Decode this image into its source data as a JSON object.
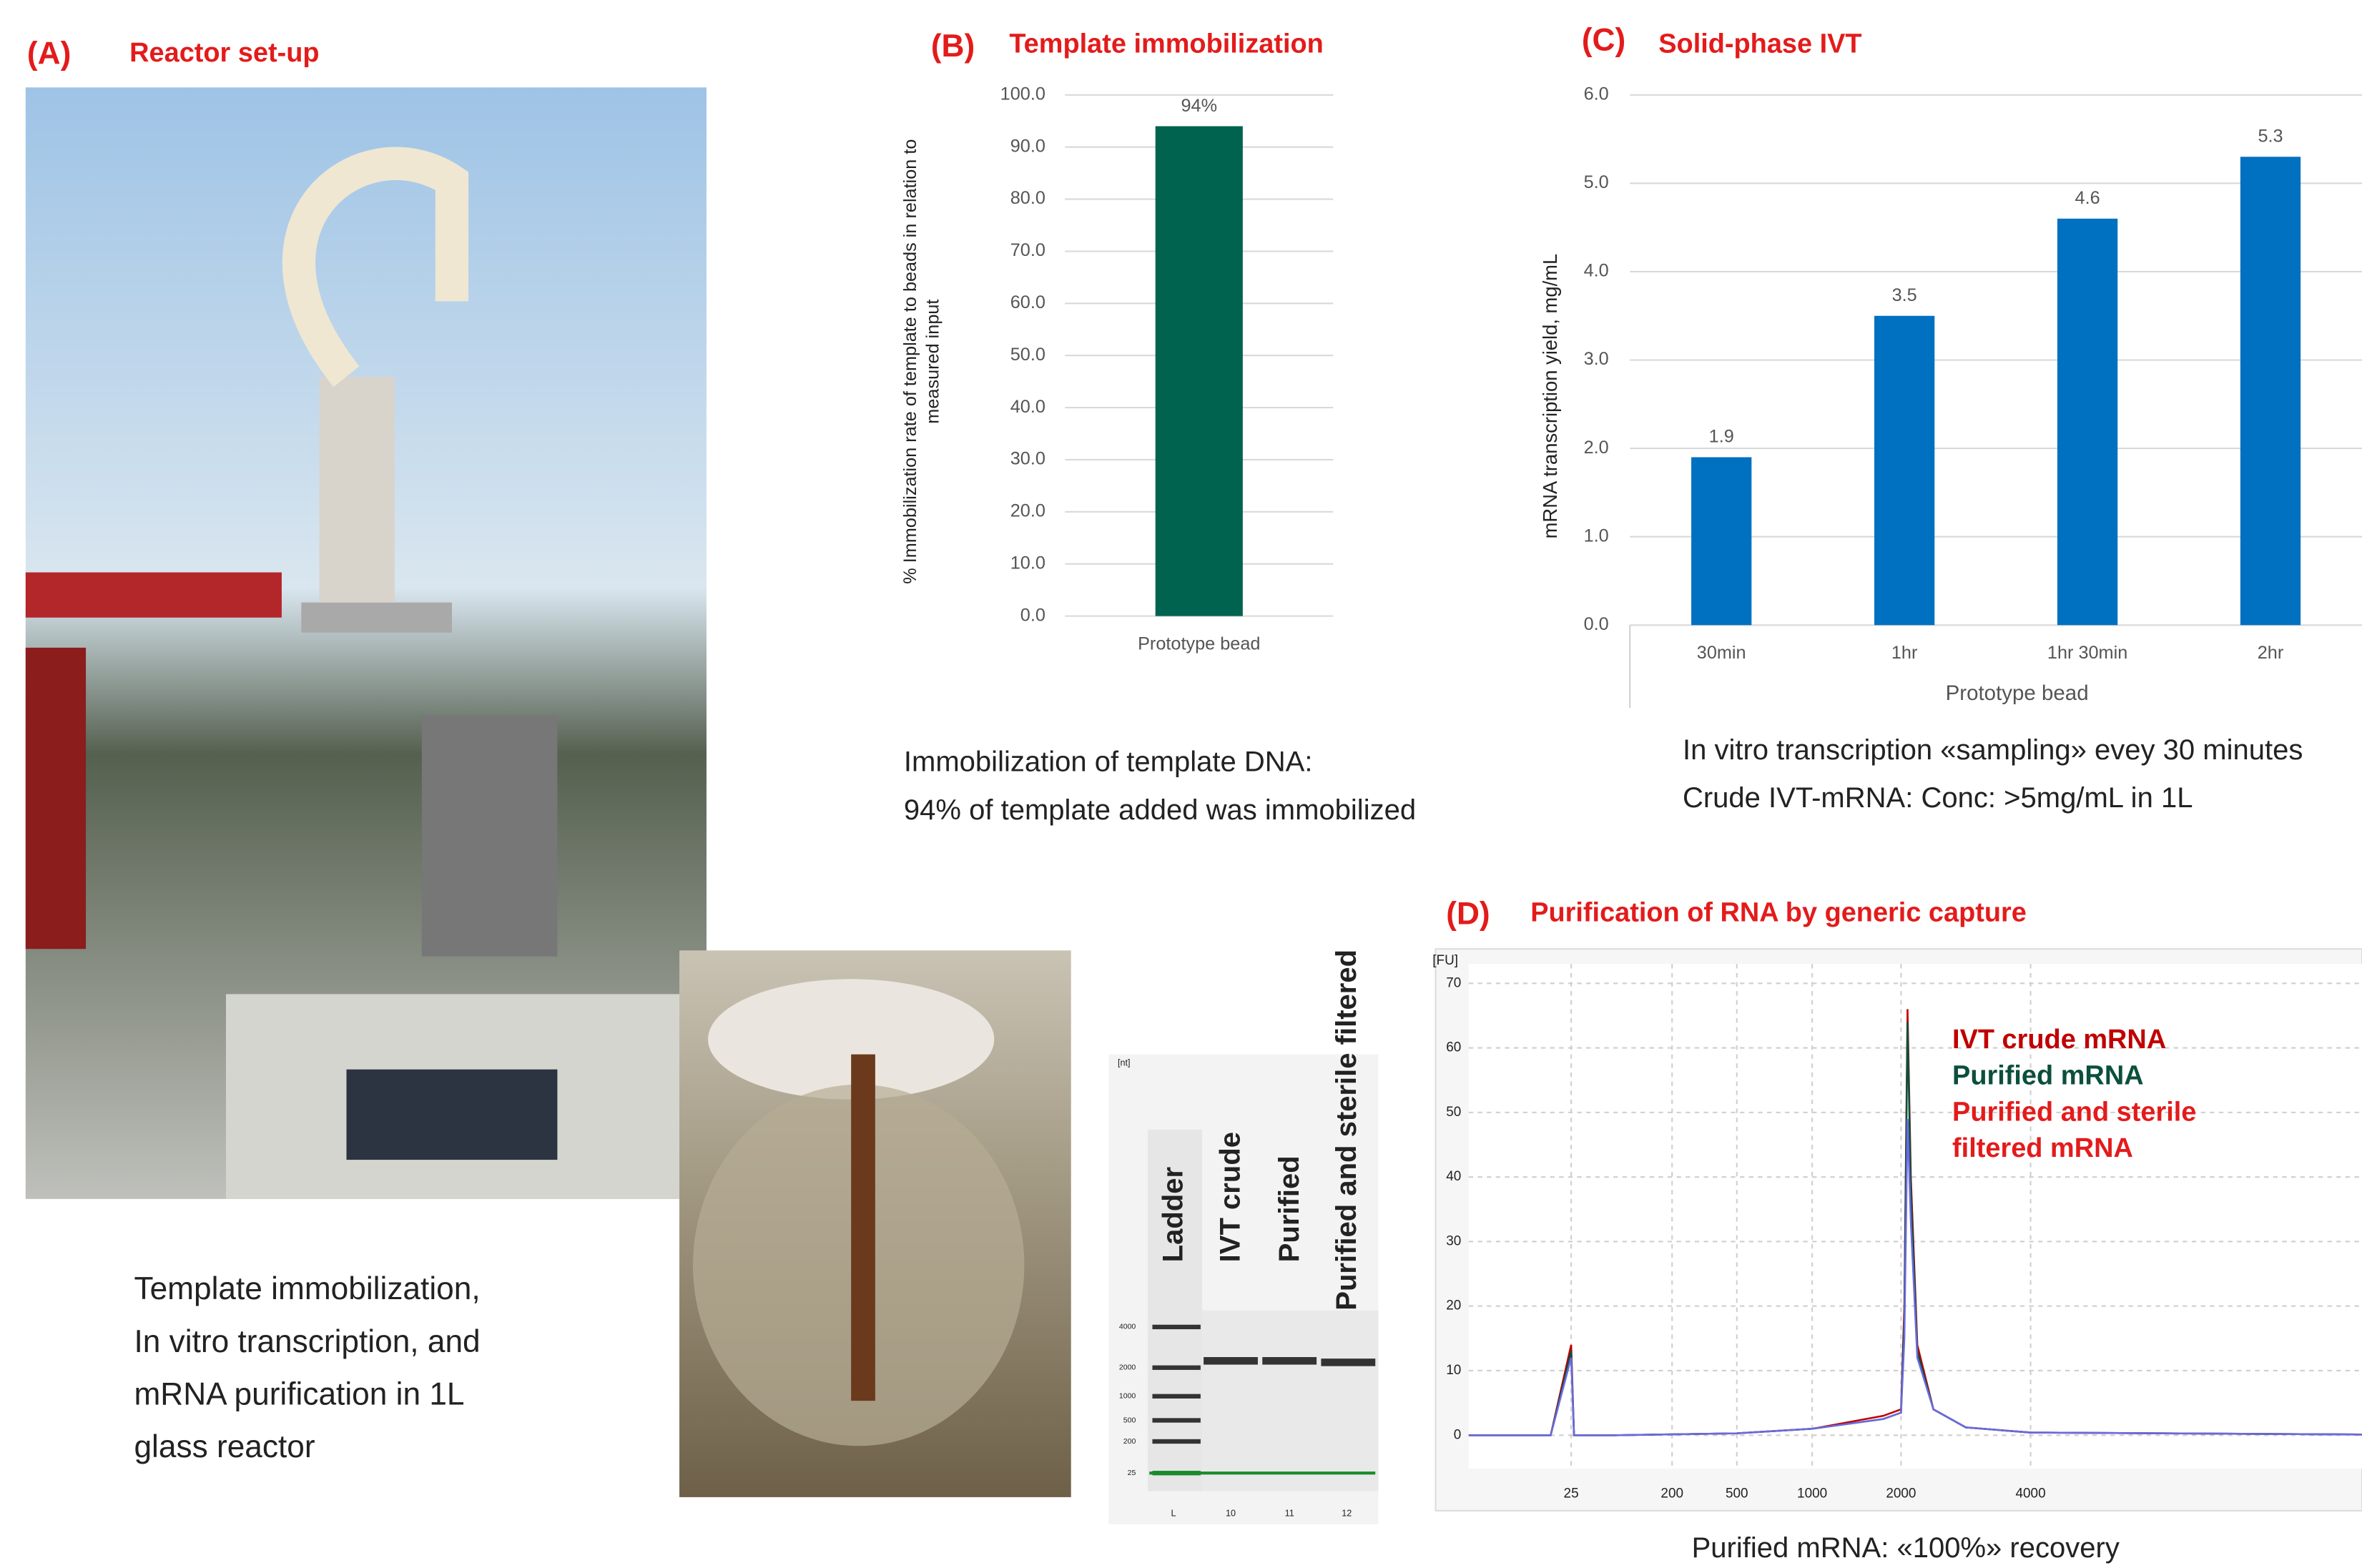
{
  "panels": [
    {
      "label": "(A)",
      "title": "Reactor set-up",
      "caption": [
        "Template immobilization,",
        "In vitro transcription, and",
        "mRNA purification in 1L",
        "glass reactor"
      ]
    },
    {
      "label": "(B)",
      "caption": [
        "Immobilization of template DNA:",
        "94% of template added was immobilized"
      ]
    },
    {
      "label": "(C)",
      "caption": [
        "In vitro transcription «sampling» evey 30 minutes",
        "Crude IVT-mRNA: Conc: >5mg/mL in 1L"
      ]
    },
    {
      "label": "(D)",
      "title": "Purification of RNA by generic capture",
      "caption": [
        "Purified mRNA: «100%» recovery"
      ]
    }
  ],
  "gel": {
    "unit": "[nt]",
    "lanes": [
      "Ladder",
      "IVT crude",
      "Purified",
      "Purified and sterile filtered"
    ],
    "lane_numbers": [
      "L",
      "10",
      "11",
      "12"
    ],
    "ladder": [
      "4000",
      "2000",
      "1000",
      "500",
      "200",
      "25"
    ]
  },
  "chart_data": [
    {
      "type": "bar",
      "title": "Template immobilization",
      "ylabel": [
        "% Immobilization rate of template to beads in relation to",
        "measured input"
      ],
      "categories": [
        "Prototype bead"
      ],
      "values": [
        94
      ],
      "value_labels": [
        "94%"
      ],
      "color": "#00634f",
      "ylim": [
        0,
        100
      ],
      "grid": true,
      "yticks": [
        {
          "value": 0,
          "label": "0.0"
        },
        {
          "value": 10,
          "label": "10.0"
        },
        {
          "value": 20,
          "label": "20.0"
        },
        {
          "value": 30,
          "label": "30.0"
        },
        {
          "value": 40,
          "label": "40.0"
        },
        {
          "value": 50,
          "label": "50.0"
        },
        {
          "value": 60,
          "label": "60.0"
        },
        {
          "value": 70,
          "label": "70.0"
        },
        {
          "value": 80,
          "label": "80.0"
        },
        {
          "value": 90,
          "label": "90.0"
        },
        {
          "value": 100,
          "label": "100.0"
        }
      ]
    },
    {
      "type": "bar",
      "title": "Solid-phase IVT",
      "xlabel": "Prototype bead",
      "ylabel": [
        "mRNA transcription yield, mg/mL"
      ],
      "categories": [
        "30min",
        "1hr",
        "1hr 30min",
        "2hr"
      ],
      "values": [
        1.9,
        3.5,
        4.6,
        5.3
      ],
      "color": "#0070c0",
      "ylim": [
        0,
        6
      ],
      "grid": true,
      "yticks": [
        {
          "value": 0,
          "label": "0.0"
        },
        {
          "value": 1,
          "label": "1.0"
        },
        {
          "value": 2,
          "label": "2.0"
        },
        {
          "value": 3,
          "label": "3.0"
        },
        {
          "value": 4,
          "label": "4.0"
        },
        {
          "value": 5,
          "label": "5.0"
        },
        {
          "value": 6,
          "label": "6.0"
        }
      ]
    },
    {
      "type": "line",
      "ylabel": [
        "[FU]"
      ],
      "x": [
        0,
        20,
        25,
        30,
        100,
        500,
        1000,
        1800,
        2000,
        2050,
        2100,
        2150,
        2250,
        2500,
        3000,
        4000,
        6000
      ],
      "series": [
        {
          "name": "IVT crude mRNA",
          "color": "#c00000",
          "values": [
            0,
            0,
            14,
            0,
            0,
            0.3,
            1,
            3,
            4,
            20,
            66,
            40,
            14,
            4,
            1.2,
            0.4,
            0.1
          ]
        },
        {
          "name": "Purified mRNA",
          "color": "#0b4f3c",
          "values": [
            0,
            0,
            13,
            0,
            0,
            0.3,
            1,
            2.5,
            3.5,
            18,
            64,
            38,
            13,
            4,
            1.2,
            0.4,
            0.1
          ]
        },
        {
          "name": "Purified and sterile filtered mRNA",
          "color": "#6a6ae0",
          "values": [
            0,
            0,
            12,
            0,
            0,
            0.3,
            1,
            2.5,
            3.5,
            15,
            49,
            33,
            12,
            4,
            1.2,
            0.4,
            0.1
          ]
        }
      ],
      "xlim": [
        0,
        6000
      ],
      "xticks": [
        25,
        200,
        500,
        1000,
        2000,
        4000
      ],
      "ylim": [
        -11,
        73
      ],
      "yticks": [
        0,
        10,
        20,
        30,
        40,
        50,
        60,
        70
      ],
      "grid": true
    }
  ]
}
